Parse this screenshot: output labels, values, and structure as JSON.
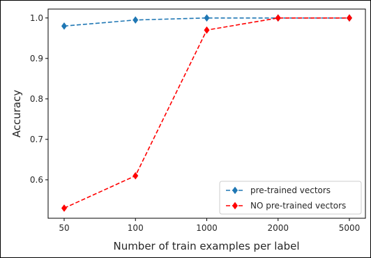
{
  "chart_data": {
    "type": "line",
    "categories": [
      "50",
      "100",
      "1000",
      "2000",
      "5000"
    ],
    "series": [
      {
        "name": "pre-trained vectors",
        "values": [
          0.98,
          0.995,
          1.0,
          1.0,
          1.0
        ],
        "color": "#1f77b4",
        "linestyle": "dashed",
        "marker": "diamond"
      },
      {
        "name": "NO pre-trained vectors",
        "values": [
          0.53,
          0.61,
          0.97,
          1.0,
          1.0
        ],
        "color": "#ff0000",
        "linestyle": "dashed",
        "marker": "diamond"
      }
    ],
    "xlabel": "Number of train examples per label",
    "ylabel": "Accuracy",
    "ylim": [
      0.505,
      1.022
    ],
    "yticks": [
      "0.6",
      "0.7",
      "0.8",
      "0.9",
      "1.0"
    ],
    "grid": false,
    "legend_position": "lower-right"
  }
}
